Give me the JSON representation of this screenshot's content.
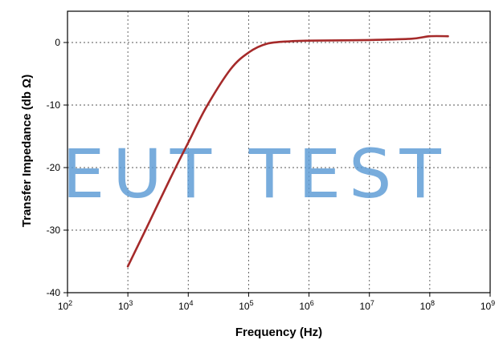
{
  "chart_data": {
    "type": "line",
    "title": "",
    "xlabel": "Frequency (Hz)",
    "ylabel": "Transfer Impedance (db Ω)",
    "x_scale": "log",
    "xlim": [
      100,
      1000000000
    ],
    "ylim": [
      -40,
      5
    ],
    "x_ticks": [
      {
        "value": 100,
        "base": "10",
        "exp": "2"
      },
      {
        "value": 1000,
        "base": "10",
        "exp": "3"
      },
      {
        "value": 10000,
        "base": "10",
        "exp": "4"
      },
      {
        "value": 100000,
        "base": "10",
        "exp": "5"
      },
      {
        "value": 1000000,
        "base": "10",
        "exp": "6"
      },
      {
        "value": 10000000,
        "base": "10",
        "exp": "7"
      },
      {
        "value": 100000000,
        "base": "10",
        "exp": "8"
      },
      {
        "value": 1000000000,
        "base": "10",
        "exp": "9"
      }
    ],
    "y_ticks": [
      "0",
      "-10",
      "-20",
      "-30",
      "-40"
    ],
    "y_tick_values": [
      0,
      -10,
      -20,
      -30,
      -40
    ],
    "grid": true,
    "series": [
      {
        "color": "#a52a2a",
        "x": [
          1000,
          2000,
          5000,
          10000,
          20000,
          50000,
          100000,
          200000,
          500000,
          1000000,
          10000000,
          50000000,
          100000000,
          200000000
        ],
        "y": [
          -35.8,
          -29.8,
          -21.8,
          -16.0,
          -10.3,
          -4.3,
          -1.6,
          -0.2,
          0.2,
          0.3,
          0.4,
          0.6,
          1.0,
          1.0
        ]
      }
    ]
  },
  "watermark": "EUT TEST",
  "colors": {
    "line": "#a52a2a",
    "watermark": "#5b9bd5",
    "grid": "#555555"
  }
}
